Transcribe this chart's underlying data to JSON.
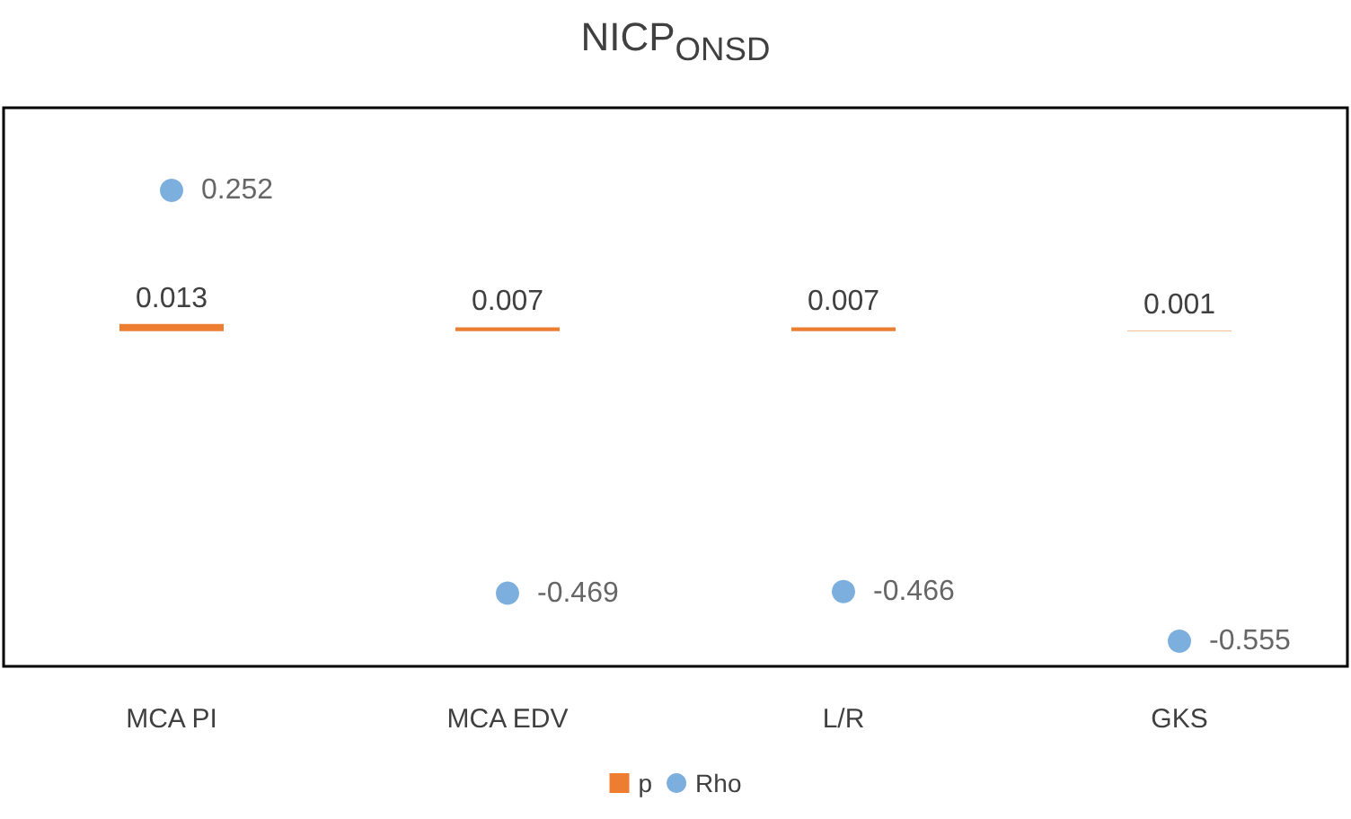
{
  "chart_data": {
    "type": "bar",
    "title": "NICP$_{ONSD}$",
    "categories": [
      "MCA PI",
      "MCA EDV",
      "L/R",
      "GKS"
    ],
    "series": [
      {
        "name": "p",
        "color": "#ed7d31",
        "values": [
          0.013,
          0.007,
          0.007,
          0.001
        ]
      },
      {
        "name": "Rho",
        "type": "scatter",
        "color": "#5b9bd5",
        "values": [
          0.252,
          -0.469,
          -0.466,
          -0.555
        ]
      }
    ],
    "data_labels": true,
    "legend": "bottom",
    "grid": false,
    "marker": "circle"
  }
}
